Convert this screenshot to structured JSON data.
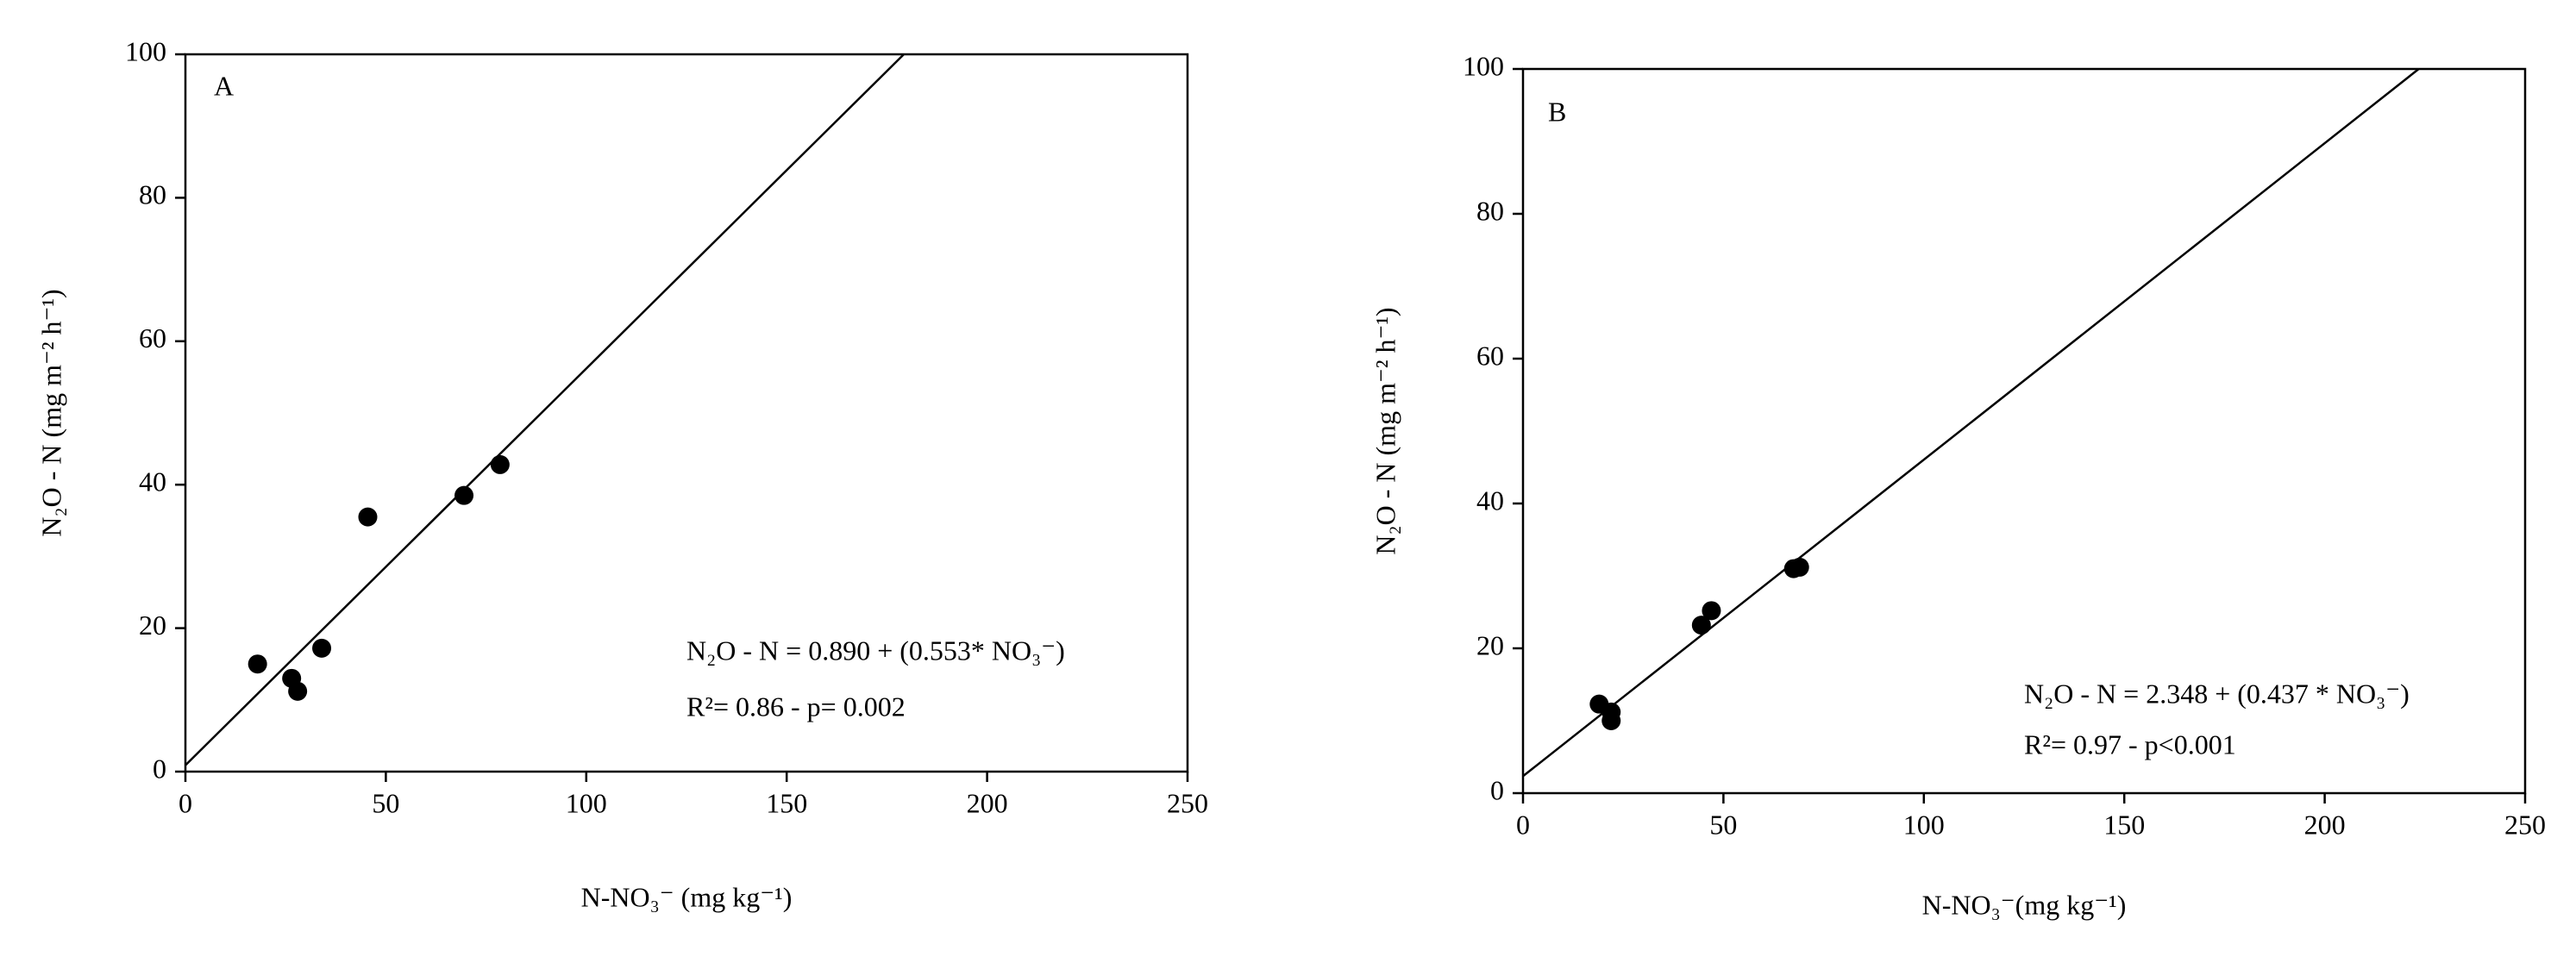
{
  "chart_data": [
    {
      "type": "scatter",
      "panel_label": "A",
      "xlabel": "N-NO₃⁻ (mg kg⁻¹)",
      "ylabel": "N₂O - N (mg m⁻² h⁻¹)",
      "x": [
        18,
        26.5,
        28,
        34,
        45.5,
        69.5,
        78.5
      ],
      "values": [
        15,
        13,
        11.2,
        17.2,
        35.5,
        38.5,
        42.8
      ],
      "color": "#000000",
      "fit": {
        "intercept": 0.89,
        "slope": 0.553
      },
      "annotations": [
        "N₂O - N = 0.890 + (0.553* NO₃⁻)",
        "R²= 0.86 - p= 0.002"
      ],
      "xlim": [
        0,
        250
      ],
      "ylim": [
        0,
        100
      ],
      "xticks": [
        0,
        50,
        100,
        150,
        200,
        250
      ],
      "yticks": [
        0,
        20,
        40,
        60,
        80,
        100
      ]
    },
    {
      "type": "scatter",
      "panel_label": "B",
      "xlabel": "N-NO₃⁻(mg kg⁻¹)",
      "ylabel": "N₂O - N (mg m⁻² h⁻¹)",
      "x": [
        19,
        22,
        22,
        44.5,
        47,
        67.5,
        69
      ],
      "values": [
        12.3,
        11.2,
        10,
        23.2,
        25.2,
        31,
        31.2
      ],
      "color": "#000000",
      "fit": {
        "intercept": 2.348,
        "slope": 0.437
      },
      "annotations": [
        "N₂O - N = 2.348 + (0.437 * NO₃⁻)",
        "R²= 0.97 - p<0.001"
      ],
      "xlim": [
        0,
        250
      ],
      "ylim": [
        0,
        100
      ],
      "xticks": [
        0,
        50,
        100,
        150,
        200,
        250
      ],
      "yticks": [
        0,
        20,
        40,
        60,
        80,
        100
      ]
    }
  ]
}
